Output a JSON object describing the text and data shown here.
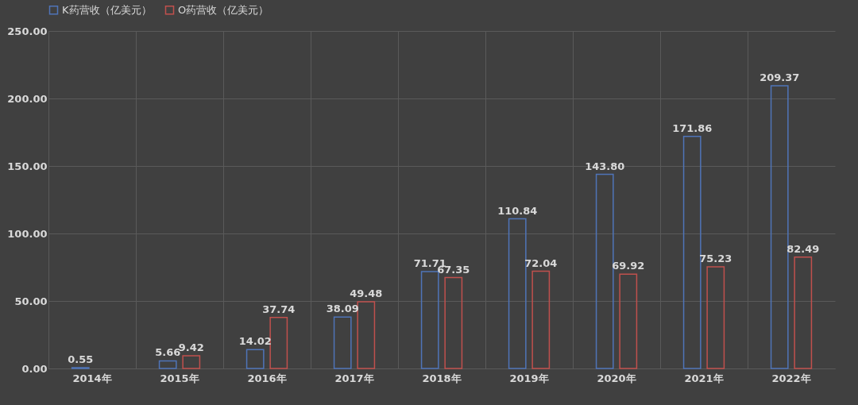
{
  "chart_data": {
    "type": "bar",
    "categories": [
      "2014年",
      "2015年",
      "2016年",
      "2017年",
      "2018年",
      "2019年",
      "2020年",
      "2021年",
      "2022年"
    ],
    "series": [
      {
        "name": "K药营收（亿美元）",
        "color": "#4f74b8",
        "values": [
          0.55,
          5.66,
          14.02,
          38.09,
          71.71,
          110.84,
          143.8,
          171.86,
          209.37
        ],
        "value_labels": [
          "0.55",
          "5.66",
          "14.02",
          "38.09",
          "71.71",
          "110.84",
          "143.80",
          "171.86",
          "209.37"
        ]
      },
      {
        "name": "O药营收（亿美元）",
        "color": "#c0504d",
        "values": [
          null,
          9.42,
          37.74,
          49.48,
          67.35,
          72.04,
          69.92,
          75.23,
          82.49
        ],
        "value_labels": [
          null,
          "9.42",
          "37.74",
          "49.48",
          "67.35",
          "72.04",
          "69.92",
          "75.23",
          "82.49"
        ]
      }
    ],
    "ylim": [
      0,
      250
    ],
    "yticks": [
      {
        "value": 0,
        "label": "0.00"
      },
      {
        "value": 50,
        "label": "50.00"
      },
      {
        "value": 100,
        "label": "100.00"
      },
      {
        "value": 150,
        "label": "150.00"
      },
      {
        "value": 200,
        "label": "200.00"
      },
      {
        "value": 250,
        "label": "250.00"
      }
    ],
    "grid": true,
    "legend": "top"
  }
}
